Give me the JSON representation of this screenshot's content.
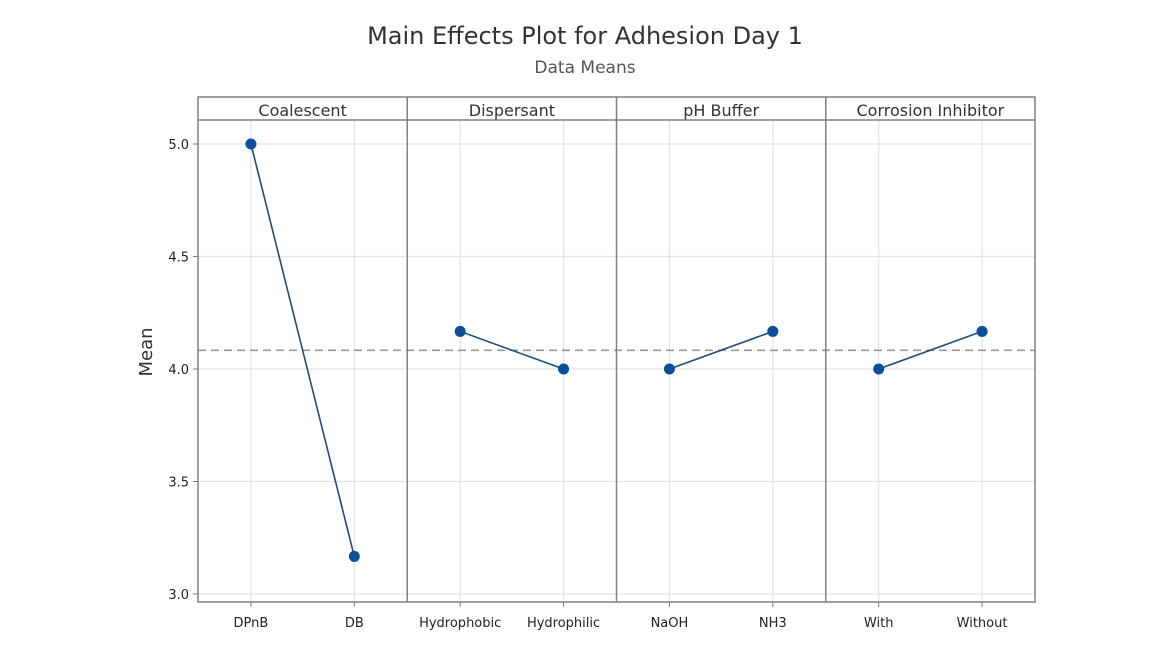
{
  "chart_data": {
    "type": "line",
    "title": "Main Effects Plot for Adhesion Day 1",
    "subtitle": "Data Means",
    "ylabel": "Mean",
    "xlabel": "",
    "ylim": [
      2.98,
      5.1
    ],
    "yticks": [
      3.0,
      3.5,
      4.0,
      4.5,
      5.0
    ],
    "ytick_labels": [
      "3.0",
      "3.5",
      "4.0",
      "4.5",
      "5.0"
    ],
    "grid": true,
    "reference_line": {
      "value": 4.083,
      "style": "dashed"
    },
    "marker_color": "#0B4E9C",
    "line_color": "#1F4E79",
    "panels": [
      {
        "factor": "Coalescent",
        "levels": [
          "DPnB",
          "DB"
        ],
        "means": [
          5.0,
          3.167
        ]
      },
      {
        "factor": "Dispersant",
        "levels": [
          "Hydrophobic",
          "Hydrophilic"
        ],
        "means": [
          4.167,
          4.0
        ]
      },
      {
        "factor": "pH Buffer",
        "levels": [
          "NaOH",
          "NH3"
        ],
        "means": [
          4.0,
          4.167
        ]
      },
      {
        "factor": "Corrosion Inhibitor",
        "levels": [
          "With",
          "Without"
        ],
        "means": [
          4.0,
          4.167
        ]
      }
    ]
  }
}
